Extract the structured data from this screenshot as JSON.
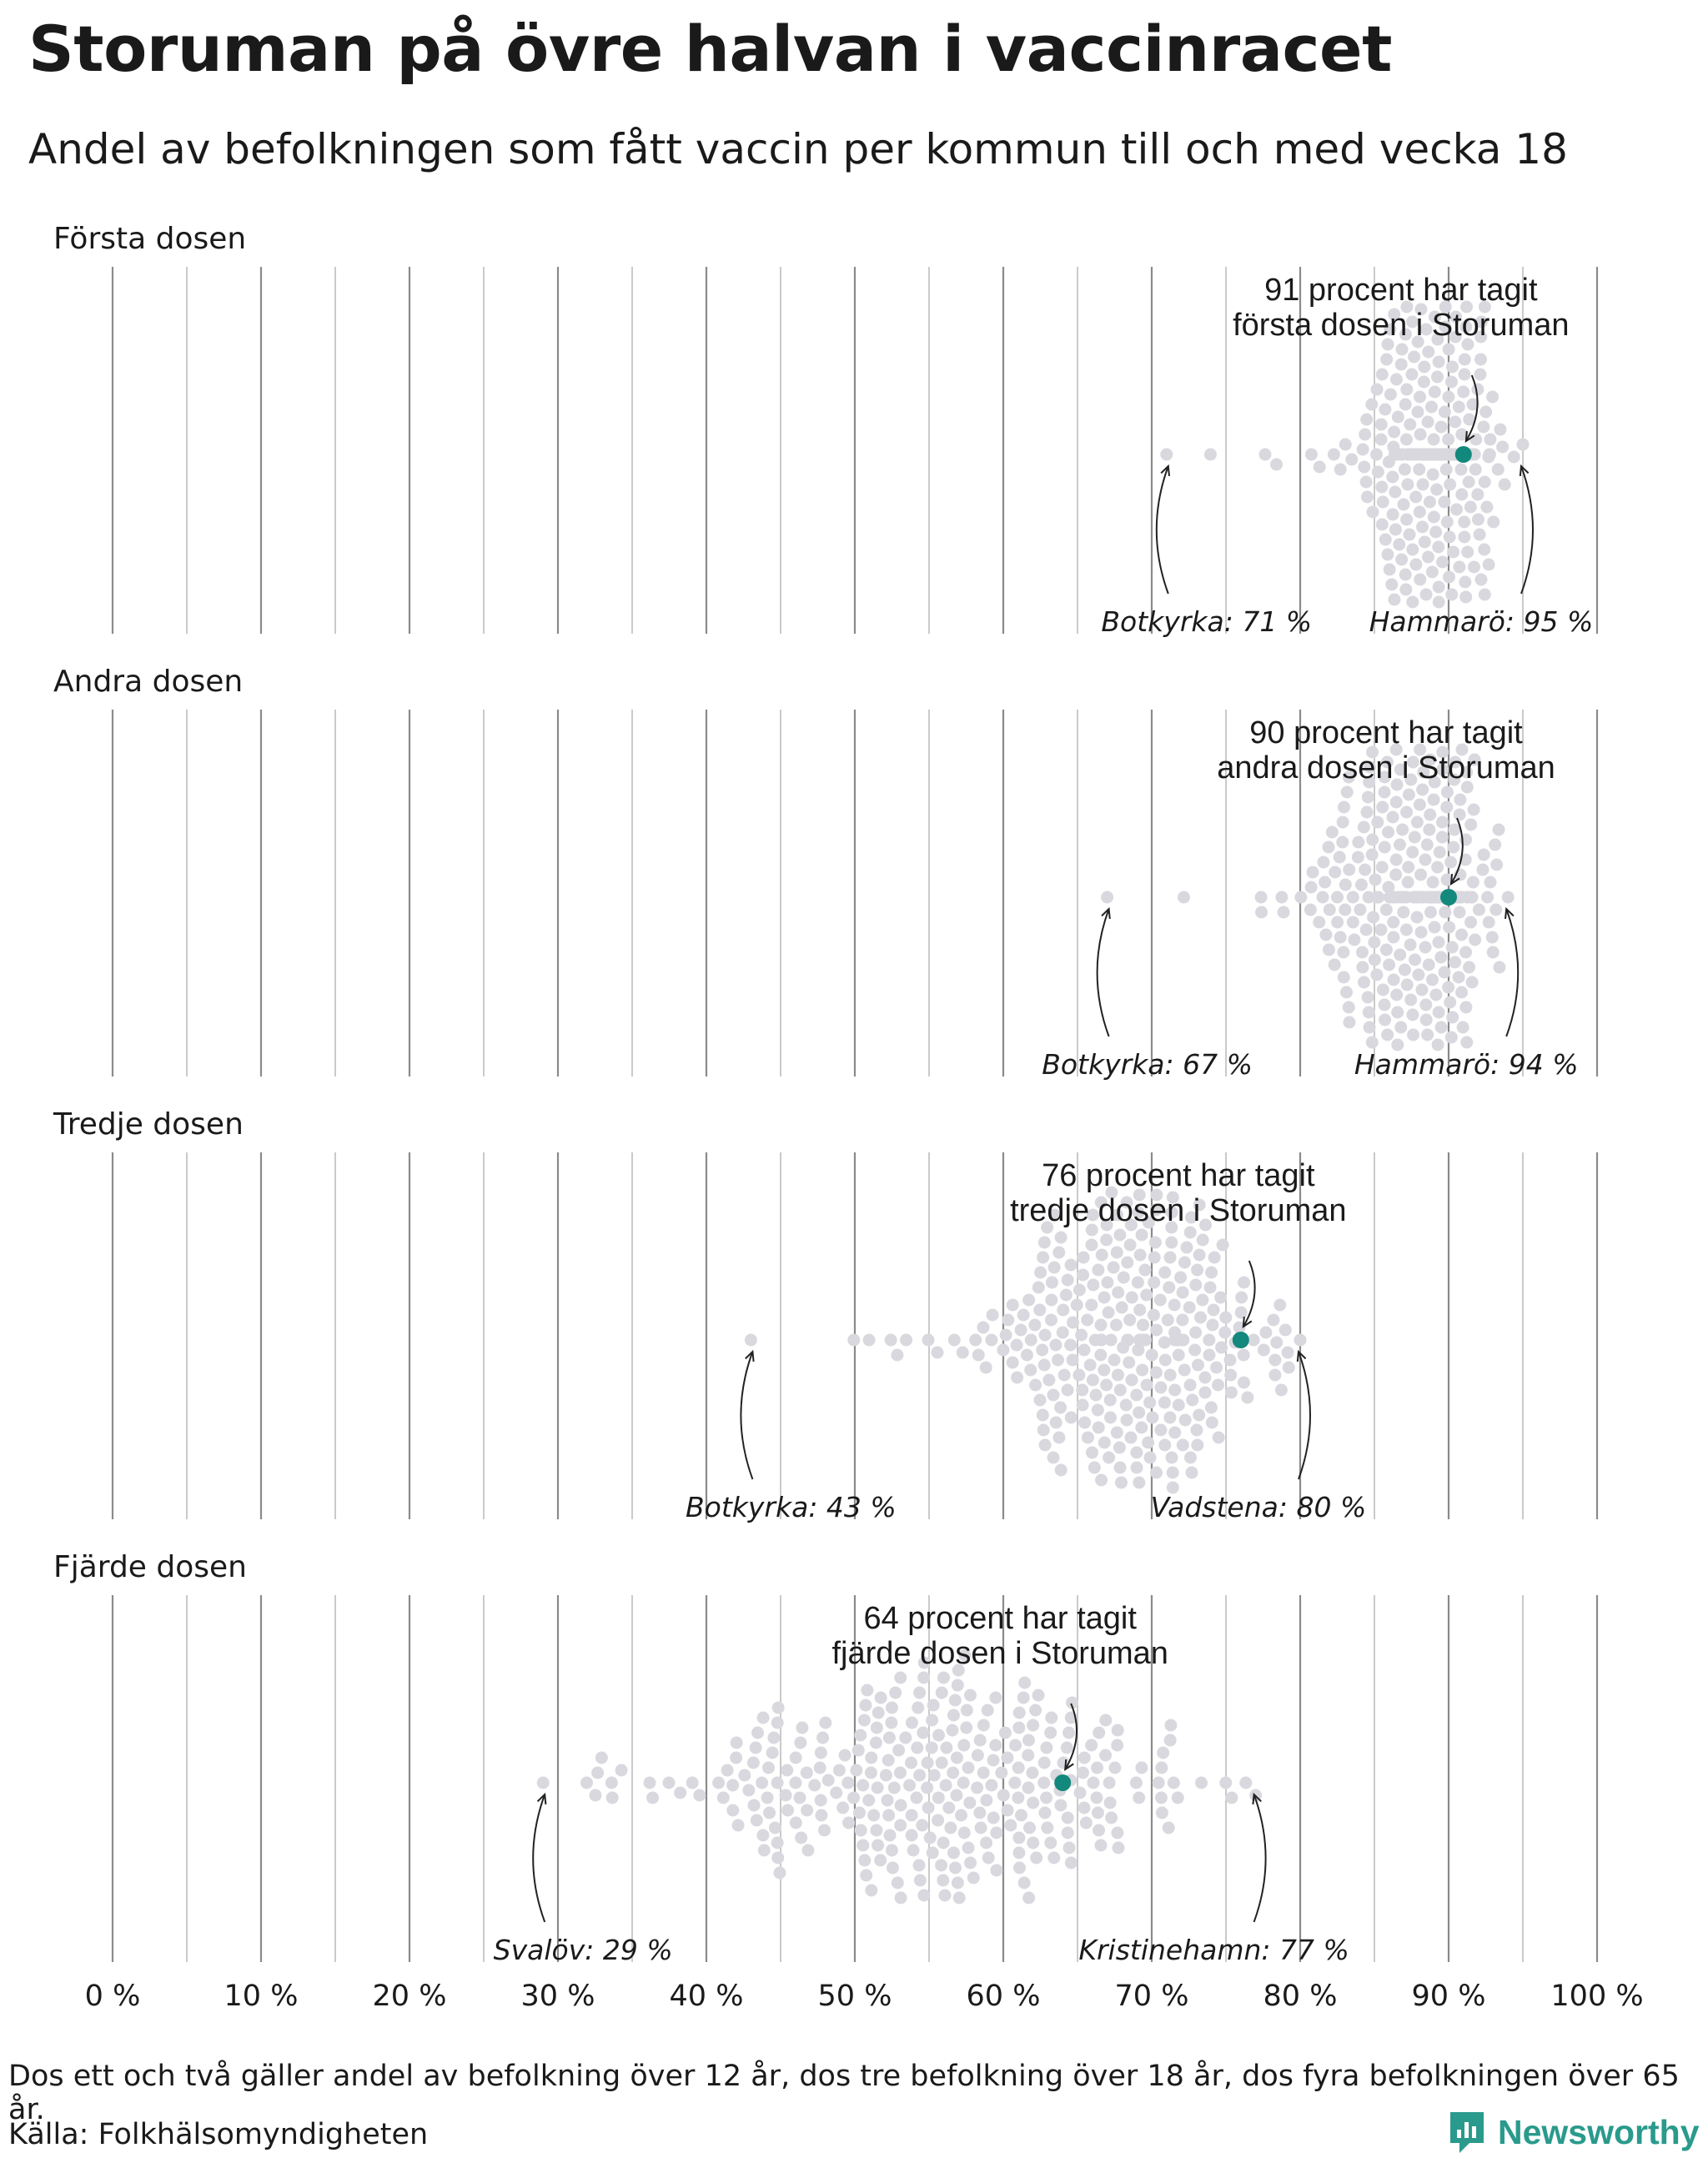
{
  "title": "Storuman på övre halvan i vaccinracet",
  "subtitle": "Andel av befolkningen som fått vaccin per kommun till och med vecka 18",
  "note": "Dos ett och två gäller andel av befolkning över 12 år, dos tre befolkning över 18 år, dos fyra befolkningen över 65 år.",
  "source": "Källa: Folkhälsomyndigheten",
  "brand": "Newsworthy",
  "colors": {
    "dot": "#d9d8de",
    "highlight": "#13887c",
    "grid": "#9a9a9a",
    "text": "#1a1a1a",
    "brand": "#2a9a8c"
  },
  "chart_data": {
    "type": "scatter",
    "subtype": "beeswarm",
    "xlim": [
      0,
      100
    ],
    "x_ticks": [
      "0 %",
      "10 %",
      "20 %",
      "30 %",
      "40 %",
      "50 %",
      "60 %",
      "70 %",
      "80 %",
      "90 %",
      "100 %"
    ],
    "grid": true,
    "panels": [
      {
        "label": "Första dosen",
        "highlight": {
          "value": 91,
          "annotation": [
            "91 procent har tagit",
            "första dosen i Storuman"
          ]
        },
        "min": {
          "value": 71,
          "label": "Botkyrka: 71 %"
        },
        "max": {
          "value": 95,
          "label": "Hammarö: 95 %"
        },
        "distribution": {
          "mean": 89,
          "sd": 2.2,
          "n": 290
        }
      },
      {
        "label": "Andra dosen",
        "highlight": {
          "value": 90,
          "annotation": [
            "90 procent har tagit",
            "andra dosen i Storuman"
          ]
        },
        "min": {
          "value": 67,
          "label": "Botkyrka: 67 %"
        },
        "max": {
          "value": 94,
          "label": "Hammarö: 94 %"
        },
        "distribution": {
          "mean": 88,
          "sd": 3,
          "n": 290
        }
      },
      {
        "label": "Tredje dosen",
        "highlight": {
          "value": 76,
          "annotation": [
            "76 procent har tagit",
            "tredje dosen i Storuman"
          ]
        },
        "min": {
          "value": 43,
          "label": "Botkyrka: 43 %"
        },
        "max": {
          "value": 80,
          "label": "Vadstena: 80 %"
        },
        "distribution": {
          "mean": 69,
          "sd": 5,
          "n": 290
        }
      },
      {
        "label": "Fjärde dosen",
        "highlight": {
          "value": 64,
          "annotation": [
            "64 procent har tagit",
            "fjärde dosen i Storuman"
          ]
        },
        "min": {
          "value": 29,
          "label": "Svalöv: 29 %"
        },
        "max": {
          "value": 77,
          "label": "Kristinehamn: 77 %"
        },
        "distribution": {
          "mean": 56,
          "sd": 9,
          "n": 290
        }
      }
    ]
  }
}
